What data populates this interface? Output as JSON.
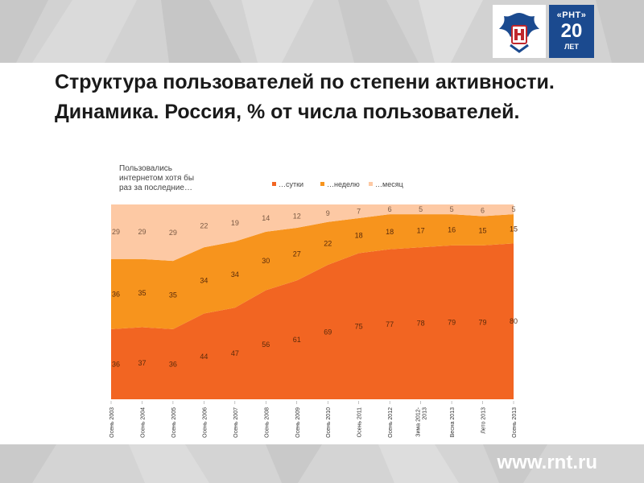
{
  "header": {
    "logo_icon": "eagle-emblem-icon",
    "anniversary": {
      "top": "«РНТ»",
      "number": "20",
      "bottom": "ЛЕТ"
    }
  },
  "title": "Структура пользователей по степени активности. Динамика. Россия, % от числа пользователей.",
  "chart_data": {
    "type": "area",
    "stacked": true,
    "legend_title": "Пользовались интернетом хотя бы раз за последние…",
    "legend_position": "top",
    "x": [
      "Осень 2003",
      "Осень 2004",
      "Осень 2005",
      "Осень 2006",
      "Осень 2007",
      "Осень 2008",
      "Осень 2009",
      "Осень 2010",
      "Осень 2011",
      "Осень 2012",
      "Зима 2012-2013",
      "Весна 2013",
      "Лето 2013",
      "Осень 2013"
    ],
    "series": [
      {
        "name": "…сутки",
        "color": "#f26522",
        "values": [
          36,
          37,
          36,
          44,
          47,
          56,
          61,
          69,
          75,
          77,
          78,
          79,
          79,
          80
        ]
      },
      {
        "name": "…неделю",
        "color": "#f7941d",
        "values": [
          36,
          35,
          35,
          34,
          34,
          30,
          27,
          22,
          18,
          18,
          17,
          16,
          15,
          15
        ]
      },
      {
        "name": "…месяц",
        "color": "#fdc9a4",
        "values": [
          29,
          29,
          29,
          22,
          19,
          14,
          12,
          9,
          7,
          6,
          5,
          5,
          6,
          5
        ]
      }
    ],
    "ylim": [
      0,
      100
    ],
    "grid": false
  },
  "footer": {
    "url": "www.rnt.ru"
  }
}
